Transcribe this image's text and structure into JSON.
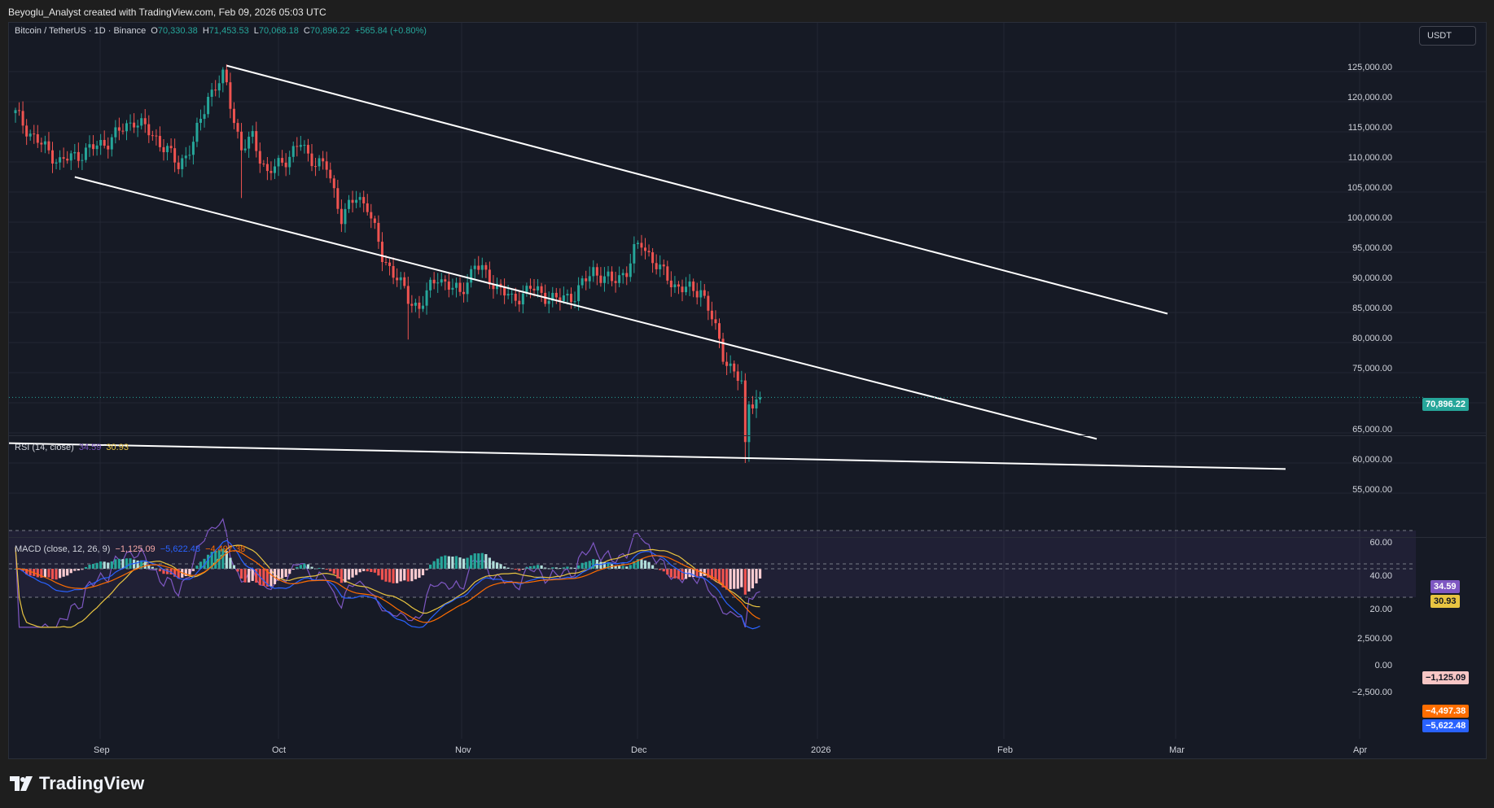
{
  "header": {
    "credit": "Beyoglu_Analyst created with TradingView.com, Feb 09, 2026 05:03 UTC"
  },
  "colors": {
    "up": "#26a69a",
    "down": "#ef5350",
    "rsi": "#7e57c2",
    "rsi_ma": "#e8c441",
    "macd": "#2962ff",
    "signal": "#ff6d00",
    "grid": "#232733"
  },
  "legend": {
    "symbol": "Bitcoin / TetherUS · 1D · Binance",
    "o_label": "O",
    "o": "70,330.38",
    "h_label": "H",
    "h": "71,453.53",
    "l_label": "L",
    "l": "70,068.18",
    "c_label": "C",
    "c": "70,896.22",
    "change": "+565.84 (+0.80%)"
  },
  "currency_button": "USDT",
  "price_axis": [
    "125,000.00",
    "120,000.00",
    "115,000.00",
    "110,000.00",
    "105,000.00",
    "100,000.00",
    "95,000.00",
    "90,000.00",
    "85,000.00",
    "80,000.00",
    "75,000.00",
    "65,000.00",
    "60,000.00",
    "55,000.00"
  ],
  "last_price": "70,896.22",
  "rsi": {
    "label": "RSI (14, close)",
    "value": "34.59",
    "ma": "30.93",
    "axis": [
      "60.00",
      "40.00",
      "20.00"
    ]
  },
  "macd": {
    "label": "MACD (close, 12, 26, 9)",
    "hist": "−1,125.09",
    "macd": "−5,622.48",
    "signal": "−4,497.38",
    "axis": [
      "2,500.00",
      "0.00",
      "−2,500.00"
    ]
  },
  "time_axis": [
    "Sep",
    "Oct",
    "Nov",
    "Dec",
    "2026",
    "Feb",
    "Mar",
    "Apr"
  ],
  "brand": "TradingView",
  "chart_data": {
    "type": "candlestick",
    "ylim": [
      53000,
      128000
    ],
    "anchor_points": [
      {
        "d": 0,
        "p": 118000
      },
      {
        "d": 5,
        "p": 114000
      },
      {
        "d": 12,
        "p": 110000
      },
      {
        "d": 18,
        "p": 111500
      },
      {
        "d": 25,
        "p": 113500
      },
      {
        "d": 32,
        "p": 117000
      },
      {
        "d": 38,
        "p": 114000
      },
      {
        "d": 44,
        "p": 109500
      },
      {
        "d": 48,
        "p": 113000
      },
      {
        "d": 52,
        "p": 121000
      },
      {
        "d": 56,
        "p": 124000
      },
      {
        "d": 57,
        "p": 122500
      },
      {
        "d": 61,
        "p": 112000
      },
      {
        "d": 64,
        "p": 114000
      },
      {
        "d": 68,
        "p": 108000
      },
      {
        "d": 72,
        "p": 110000
      },
      {
        "d": 77,
        "p": 113000
      },
      {
        "d": 79,
        "p": 111000
      },
      {
        "d": 84,
        "p": 109000
      },
      {
        "d": 88,
        "p": 101000
      },
      {
        "d": 92,
        "p": 104000
      },
      {
        "d": 95,
        "p": 103000
      },
      {
        "d": 99,
        "p": 94000
      },
      {
        "d": 103,
        "p": 91000
      },
      {
        "d": 106,
        "p": 87000
      },
      {
        "d": 109,
        "p": 86000
      },
      {
        "d": 114,
        "p": 91000
      },
      {
        "d": 120,
        "p": 88000
      },
      {
        "d": 124,
        "p": 93000
      },
      {
        "d": 129,
        "p": 90000
      },
      {
        "d": 134,
        "p": 87000
      },
      {
        "d": 139,
        "p": 89000
      },
      {
        "d": 146,
        "p": 87000
      },
      {
        "d": 151,
        "p": 88000
      },
      {
        "d": 156,
        "p": 92000
      },
      {
        "d": 161,
        "p": 90000
      },
      {
        "d": 165,
        "p": 92000
      },
      {
        "d": 167,
        "p": 95000
      },
      {
        "d": 169,
        "p": 96500
      },
      {
        "d": 174,
        "p": 92000
      },
      {
        "d": 178,
        "p": 89500
      },
      {
        "d": 183,
        "p": 88500
      },
      {
        "d": 185,
        "p": 89000
      },
      {
        "d": 188,
        "p": 84000
      },
      {
        "d": 191,
        "p": 78000
      },
      {
        "d": 194,
        "p": 75000
      },
      {
        "d": 196,
        "p": 73000
      },
      {
        "d": 197,
        "p": 62500
      },
      {
        "d": 198,
        "p": 70500
      },
      {
        "d": 200,
        "p": 70330
      },
      {
        "d": 201,
        "p": 70896
      }
    ],
    "rsi_range": [
      10,
      80
    ],
    "macd_range": [
      -7000,
      3500
    ]
  }
}
